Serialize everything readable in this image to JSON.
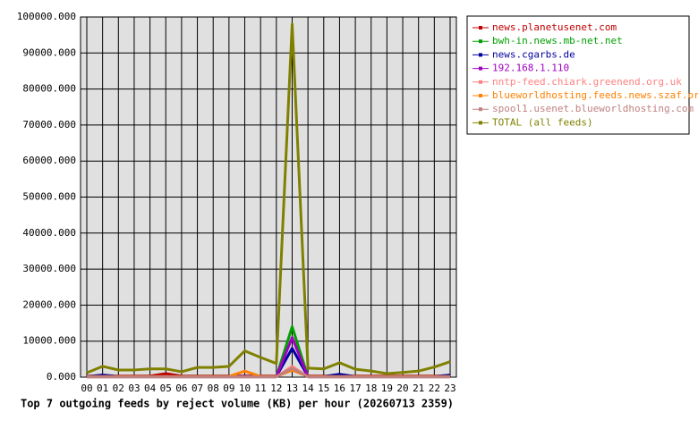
{
  "chart_data": {
    "type": "line",
    "title": "Top 7 outgoing feeds by reject volume (KB) per hour (20260713 2359)",
    "categories": [
      "00",
      "01",
      "02",
      "03",
      "04",
      "05",
      "06",
      "07",
      "08",
      "09",
      "10",
      "11",
      "12",
      "13",
      "14",
      "15",
      "16",
      "17",
      "18",
      "19",
      "20",
      "21",
      "22",
      "23"
    ],
    "ylim": [
      0,
      100000
    ],
    "yticks": [
      {
        "value": 0,
        "label": "0.000"
      },
      {
        "value": 10000,
        "label": "10000.000"
      },
      {
        "value": 20000,
        "label": "20000.000"
      },
      {
        "value": 30000,
        "label": "30000.000"
      },
      {
        "value": 40000,
        "label": "40000.000"
      },
      {
        "value": 50000,
        "label": "50000.000"
      },
      {
        "value": 60000,
        "label": "60000.000"
      },
      {
        "value": 70000,
        "label": "70000.000"
      },
      {
        "value": 80000,
        "label": "80000.000"
      },
      {
        "value": 90000,
        "label": "90000.000"
      },
      {
        "value": 100000,
        "label": "100000.000"
      }
    ],
    "grid": true,
    "series": [
      {
        "name": "news.planetusenet.com",
        "color": "#c00000",
        "values": [
          300,
          300,
          300,
          300,
          300,
          1000,
          300,
          300,
          300,
          300,
          300,
          300,
          300,
          2000,
          300,
          300,
          300,
          300,
          300,
          300,
          300,
          300,
          300,
          300
        ]
      },
      {
        "name": "bwh-in.news.mb-net.net",
        "color": "#00a000",
        "values": [
          100,
          100,
          100,
          100,
          100,
          100,
          100,
          100,
          100,
          100,
          100,
          100,
          100,
          14000,
          100,
          100,
          100,
          100,
          100,
          100,
          100,
          100,
          100,
          100
        ]
      },
      {
        "name": "news.cgarbs.de",
        "color": "#0000a0",
        "values": [
          200,
          600,
          200,
          200,
          200,
          200,
          200,
          200,
          200,
          200,
          200,
          200,
          200,
          8000,
          200,
          200,
          800,
          200,
          200,
          200,
          200,
          200,
          200,
          600
        ]
      },
      {
        "name": "192.168.1.110",
        "color": "#a000c0",
        "values": [
          100,
          100,
          100,
          100,
          100,
          100,
          100,
          100,
          100,
          100,
          100,
          100,
          100,
          11000,
          100,
          100,
          100,
          100,
          100,
          100,
          100,
          100,
          100,
          100
        ]
      },
      {
        "name": "nntp-feed.chiark.greenend.org.uk",
        "color": "#ff8080",
        "values": [
          100,
          100,
          100,
          100,
          100,
          100,
          100,
          100,
          100,
          100,
          100,
          100,
          100,
          3000,
          100,
          100,
          100,
          100,
          100,
          100,
          100,
          100,
          100,
          100
        ]
      },
      {
        "name": "blueworldhosting.feeds.news.szaf.org",
        "color": "#ff8000",
        "values": [
          200,
          200,
          200,
          200,
          200,
          200,
          200,
          200,
          200,
          200,
          1700,
          200,
          200,
          2000,
          200,
          200,
          200,
          200,
          200,
          200,
          200,
          200,
          200,
          200
        ]
      },
      {
        "name": "spool1.usenet.blueworldhosting.com",
        "color": "#c08080",
        "values": [
          100,
          100,
          100,
          100,
          100,
          100,
          100,
          100,
          100,
          100,
          100,
          100,
          100,
          2500,
          100,
          100,
          100,
          100,
          100,
          100,
          100,
          100,
          100,
          100
        ]
      },
      {
        "name": "TOTAL (all feeds)",
        "color": "#808000",
        "values": [
          1200,
          3000,
          2000,
          2000,
          2300,
          2300,
          1500,
          2700,
          2700,
          3000,
          7300,
          5500,
          3800,
          98000,
          2500,
          2300,
          4000,
          2200,
          1700,
          1000,
          1300,
          1700,
          2800,
          4300
        ]
      }
    ]
  }
}
